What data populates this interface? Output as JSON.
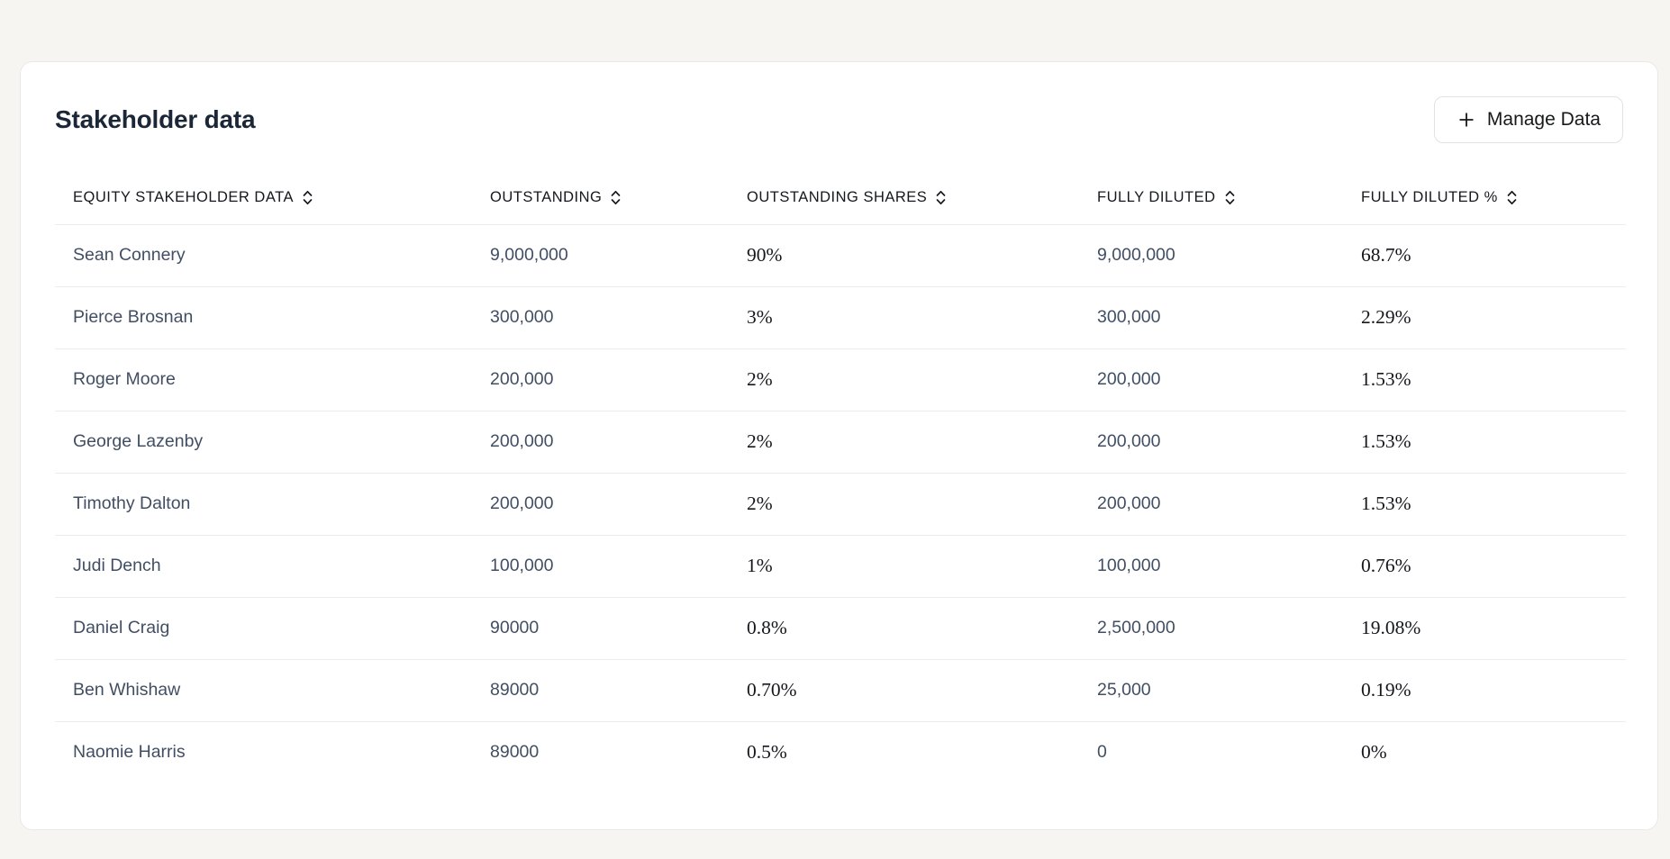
{
  "header": {
    "title": "Stakeholder data",
    "manage_button": {
      "label": "Manage Data",
      "icon": "plus-icon"
    }
  },
  "table": {
    "columns": [
      {
        "key": "equity_stakeholder_data",
        "label": "EQUITY STAKEHOLDER DATA",
        "sortable": true,
        "style": "sans"
      },
      {
        "key": "outstanding",
        "label": "OUTSTANDING",
        "sortable": true,
        "style": "sans"
      },
      {
        "key": "outstanding_shares",
        "label": "OUTSTANDING SHARES",
        "sortable": true,
        "style": "serif"
      },
      {
        "key": "fully_diluted",
        "label": "FULLY DILUTED",
        "sortable": true,
        "style": "sans"
      },
      {
        "key": "fully_diluted_pct",
        "label": "FULLY DILUTED %",
        "sortable": true,
        "style": "serif"
      }
    ],
    "rows": [
      {
        "equity_stakeholder_data": "Sean Connery",
        "outstanding": "9,000,000",
        "outstanding_shares": "90%",
        "fully_diluted": "9,000,000",
        "fully_diluted_pct": "68.7%"
      },
      {
        "equity_stakeholder_data": "Pierce Brosnan",
        "outstanding": "300,000",
        "outstanding_shares": "3%",
        "fully_diluted": "300,000",
        "fully_diluted_pct": "2.29%"
      },
      {
        "equity_stakeholder_data": "Roger Moore",
        "outstanding": "200,000",
        "outstanding_shares": "2%",
        "fully_diluted": "200,000",
        "fully_diluted_pct": "1.53%"
      },
      {
        "equity_stakeholder_data": "George Lazenby",
        "outstanding": "200,000",
        "outstanding_shares": "2%",
        "fully_diluted": "200,000",
        "fully_diluted_pct": "1.53%"
      },
      {
        "equity_stakeholder_data": "Timothy Dalton",
        "outstanding": "200,000",
        "outstanding_shares": "2%",
        "fully_diluted": "200,000",
        "fully_diluted_pct": "1.53%"
      },
      {
        "equity_stakeholder_data": "Judi Dench",
        "outstanding": "100,000",
        "outstanding_shares": "1%",
        "fully_diluted": "100,000",
        "fully_diluted_pct": "0.76%"
      },
      {
        "equity_stakeholder_data": "Daniel Craig",
        "outstanding": "90000",
        "outstanding_shares": "0.8%",
        "fully_diluted": "2,500,000",
        "fully_diluted_pct": "19.08%"
      },
      {
        "equity_stakeholder_data": "Ben Whishaw",
        "outstanding": "89000",
        "outstanding_shares": "0.70%",
        "fully_diluted": "25,000",
        "fully_diluted_pct": "0.19%"
      },
      {
        "equity_stakeholder_data": "Naomie Harris",
        "outstanding": "89000",
        "outstanding_shares": "0.5%",
        "fully_diluted": "0",
        "fully_diluted_pct": "0%"
      }
    ]
  },
  "colors": {
    "page_background": "#f6f5f2",
    "card_background": "#ffffff",
    "card_border": "#eae8e4",
    "divider": "#ececeb",
    "title_text": "#1b2736",
    "cell_text_sans": "#414e63",
    "cell_text_serif": "#15171c",
    "header_text": "#16181d"
  },
  "icons": {
    "sort": "sort-updown-icon",
    "plus": "plus-icon"
  }
}
